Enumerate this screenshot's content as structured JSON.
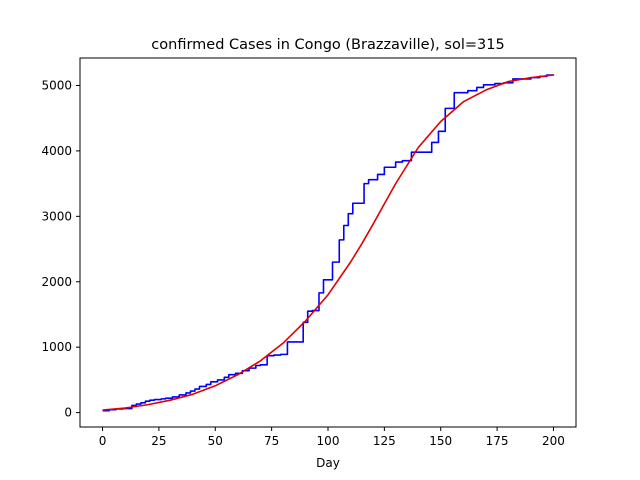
{
  "chart_data": {
    "type": "line",
    "title": "confirmed Cases in Congo (Brazzaville), sol=315",
    "xlabel": "Day",
    "ylabel": "",
    "xlim": [
      -10,
      210
    ],
    "ylim": [
      -220,
      5420
    ],
    "xticks": [
      0,
      25,
      50,
      75,
      100,
      125,
      150,
      175,
      200
    ],
    "yticks": [
      0,
      1000,
      2000,
      3000,
      4000,
      5000
    ],
    "grid": false,
    "series": [
      {
        "color": "#0000ff",
        "step": true,
        "points": [
          [
            0,
            30
          ],
          [
            3,
            45
          ],
          [
            6,
            55
          ],
          [
            9,
            62
          ],
          [
            13,
            110
          ],
          [
            15,
            130
          ],
          [
            17,
            150
          ],
          [
            19,
            175
          ],
          [
            21,
            190
          ],
          [
            23,
            200
          ],
          [
            26,
            210
          ],
          [
            28,
            220
          ],
          [
            31,
            240
          ],
          [
            34,
            270
          ],
          [
            37,
            300
          ],
          [
            39,
            330
          ],
          [
            41,
            360
          ],
          [
            43,
            400
          ],
          [
            46,
            430
          ],
          [
            48,
            470
          ],
          [
            51,
            500
          ],
          [
            54,
            540
          ],
          [
            56,
            580
          ],
          [
            59,
            600
          ],
          [
            62,
            640
          ],
          [
            65,
            680
          ],
          [
            68,
            720
          ],
          [
            70,
            730
          ],
          [
            73,
            870
          ],
          [
            76,
            880
          ],
          [
            79,
            890
          ],
          [
            82,
            1080
          ],
          [
            89,
            1380
          ],
          [
            91,
            1550
          ],
          [
            93,
            1560
          ],
          [
            96,
            1830
          ],
          [
            98,
            2030
          ],
          [
            102,
            2300
          ],
          [
            105,
            2640
          ],
          [
            107,
            2860
          ],
          [
            109,
            3040
          ],
          [
            111,
            3200
          ],
          [
            116,
            3500
          ],
          [
            118,
            3560
          ],
          [
            122,
            3640
          ],
          [
            125,
            3750
          ],
          [
            130,
            3830
          ],
          [
            133,
            3850
          ],
          [
            137,
            3980
          ],
          [
            146,
            4130
          ],
          [
            149,
            4300
          ],
          [
            152,
            4650
          ],
          [
            156,
            4890
          ],
          [
            162,
            4920
          ],
          [
            166,
            4970
          ],
          [
            169,
            5010
          ],
          [
            174,
            5030
          ],
          [
            178,
            5040
          ],
          [
            182,
            5100
          ],
          [
            186,
            5100
          ],
          [
            190,
            5120
          ],
          [
            194,
            5140
          ],
          [
            197,
            5160
          ],
          [
            200,
            5170
          ]
        ]
      },
      {
        "color": "#e00000",
        "step": false,
        "points": [
          [
            0,
            40
          ],
          [
            10,
            70
          ],
          [
            20,
            120
          ],
          [
            30,
            190
          ],
          [
            40,
            280
          ],
          [
            50,
            410
          ],
          [
            60,
            580
          ],
          [
            70,
            790
          ],
          [
            80,
            1060
          ],
          [
            90,
            1400
          ],
          [
            100,
            1800
          ],
          [
            110,
            2300
          ],
          [
            115,
            2580
          ],
          [
            120,
            2880
          ],
          [
            125,
            3190
          ],
          [
            130,
            3500
          ],
          [
            140,
            4050
          ],
          [
            150,
            4450
          ],
          [
            160,
            4750
          ],
          [
            170,
            4930
          ],
          [
            180,
            5060
          ],
          [
            190,
            5120
          ],
          [
            200,
            5160
          ]
        ]
      }
    ]
  }
}
